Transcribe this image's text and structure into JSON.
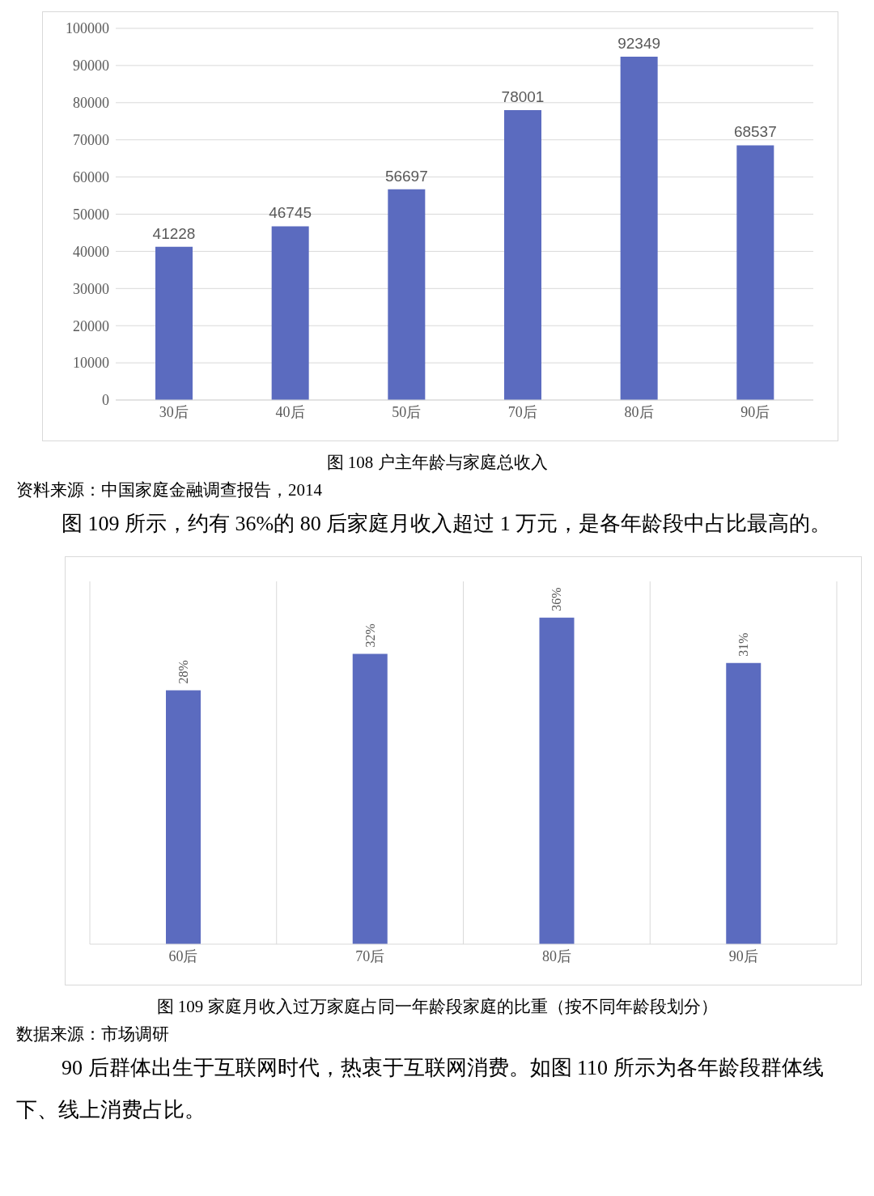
{
  "chart_data": [
    {
      "type": "bar",
      "title": "图 108 户主年龄与家庭总收入",
      "categories": [
        "30后",
        "40后",
        "50后",
        "70后",
        "80后",
        "90后"
      ],
      "values": [
        41228,
        46745,
        56697,
        78001,
        92349,
        68537
      ],
      "color": "#5b6bbf",
      "ylim": [
        0,
        100000
      ],
      "yticks": [
        0,
        10000,
        20000,
        30000,
        40000,
        50000,
        60000,
        70000,
        80000,
        90000,
        100000
      ],
      "grid": "y",
      "data_labels": true,
      "annotations": [
        "资料来源：中国家庭金融调查报告，2014",
        "图 109 所示，约有 36%的 80 后家庭月收入超过 1 万元，是各年龄段中占比最高的。"
      ]
    },
    {
      "type": "bar",
      "title": "图 109 家庭月收入过万家庭占同一年龄段家庭的比重（按不同年龄段划分）",
      "categories": [
        "60后",
        "70后",
        "80后",
        "90后"
      ],
      "values": [
        28,
        32,
        36,
        31
      ],
      "value_labels": [
        "28%",
        "32%",
        "36%",
        "31%"
      ],
      "color": "#5b6bbf",
      "ylim": [
        0,
        40
      ],
      "tick_labels": "x",
      "grid": "x",
      "annotations": [
        "数据来源：市场调研",
        "90 后群体出生于互联网时代，热衷于互联网消费。如图 110 所示为各年龄段群体线下、线上消费占比。"
      ]
    }
  ]
}
